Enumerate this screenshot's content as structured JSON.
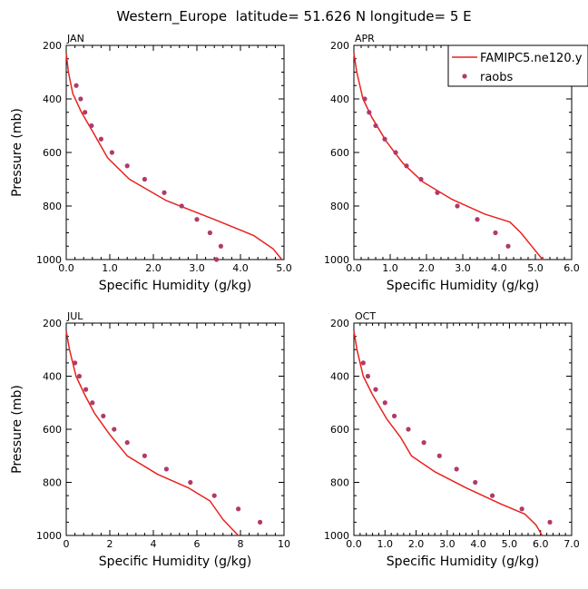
{
  "figure": {
    "title": "Western_Europe  latitude= 51.626 N longitude= 5 E"
  },
  "legend": {
    "entries": [
      {
        "label": "FAMIPC5.ne120.y",
        "style": "line",
        "color": "#e8221e"
      },
      {
        "label": "raobs",
        "style": "marker",
        "color": "#b03a6b"
      }
    ]
  },
  "chart_data": [
    {
      "type": "line",
      "panel_label": "JAN",
      "xlabel": "Specific Humidity (g/kg)",
      "ylabel": "Pressure (mb)",
      "xlim": [
        0,
        5
      ],
      "ylim": [
        1000,
        200
      ],
      "xticks": [
        "0.0",
        "1.0",
        "2.0",
        "3.0",
        "4.0",
        "5.0"
      ],
      "xtick_values": [
        0,
        1,
        2,
        3,
        4,
        5
      ],
      "yticks": [
        "200",
        "400",
        "600",
        "800",
        "1000"
      ],
      "ytick_values": [
        200,
        400,
        600,
        800,
        1000
      ],
      "series": [
        {
          "name": "FAMIPC5.ne120.y",
          "style": "line",
          "color": "#e8221e",
          "points": [
            [
              0.0,
              230
            ],
            [
              0.05,
              300
            ],
            [
              0.15,
              380
            ],
            [
              0.35,
              450
            ],
            [
              0.6,
              520
            ],
            [
              0.95,
              620
            ],
            [
              1.45,
              700
            ],
            [
              2.3,
              780
            ],
            [
              3.4,
              850
            ],
            [
              4.3,
              910
            ],
            [
              4.75,
              960
            ],
            [
              4.95,
              1000
            ]
          ]
        },
        {
          "name": "raobs",
          "style": "marker",
          "color": "#b03a6b",
          "points": [
            [
              0.23,
              350
            ],
            [
              0.33,
              400
            ],
            [
              0.43,
              450
            ],
            [
              0.58,
              500
            ],
            [
              0.8,
              550
            ],
            [
              1.05,
              600
            ],
            [
              1.4,
              650
            ],
            [
              1.8,
              700
            ],
            [
              2.25,
              750
            ],
            [
              2.65,
              800
            ],
            [
              3.0,
              850
            ],
            [
              3.3,
              900
            ],
            [
              3.55,
              950
            ],
            [
              3.45,
              1000
            ]
          ]
        }
      ]
    },
    {
      "type": "line",
      "panel_label": "APR",
      "xlabel": "Specific Humidity (g/kg)",
      "ylabel": "",
      "xlim": [
        0,
        6
      ],
      "ylim": [
        1000,
        200
      ],
      "xticks": [
        "0.0",
        "1.0",
        "2.0",
        "3.0",
        "4.0",
        "5.0",
        "6.0"
      ],
      "xtick_values": [
        0,
        1,
        2,
        3,
        4,
        5,
        6
      ],
      "yticks": [
        "200",
        "400",
        "600",
        "800",
        "1000"
      ],
      "ytick_values": [
        200,
        400,
        600,
        800,
        1000
      ],
      "series": [
        {
          "name": "FAMIPC5.ne120.y",
          "style": "line",
          "color": "#e8221e",
          "points": [
            [
              0.0,
              230
            ],
            [
              0.08,
              300
            ],
            [
              0.25,
              400
            ],
            [
              0.5,
              470
            ],
            [
              0.9,
              560
            ],
            [
              1.35,
              640
            ],
            [
              1.9,
              710
            ],
            [
              2.7,
              775
            ],
            [
              3.6,
              830
            ],
            [
              4.3,
              860
            ],
            [
              4.6,
              900
            ],
            [
              4.9,
              950
            ],
            [
              5.2,
              1000
            ]
          ]
        },
        {
          "name": "raobs",
          "style": "marker",
          "color": "#b03a6b",
          "points": [
            [
              0.3,
              400
            ],
            [
              0.42,
              450
            ],
            [
              0.6,
              500
            ],
            [
              0.85,
              550
            ],
            [
              1.15,
              600
            ],
            [
              1.45,
              650
            ],
            [
              1.85,
              700
            ],
            [
              2.3,
              750
            ],
            [
              2.85,
              800
            ],
            [
              3.4,
              850
            ],
            [
              3.9,
              900
            ],
            [
              4.25,
              950
            ]
          ]
        }
      ]
    },
    {
      "type": "line",
      "panel_label": "JUL",
      "xlabel": "Specific Humidity (g/kg)",
      "ylabel": "Pressure (mb)",
      "xlim": [
        0,
        10
      ],
      "ylim": [
        1000,
        200
      ],
      "xticks": [
        "0",
        "2",
        "4",
        "6",
        "8",
        "10"
      ],
      "xtick_values": [
        0,
        2,
        4,
        6,
        8,
        10
      ],
      "yticks": [
        "200",
        "400",
        "600",
        "800",
        "1000"
      ],
      "ytick_values": [
        200,
        400,
        600,
        800,
        1000
      ],
      "series": [
        {
          "name": "FAMIPC5.ne120.y",
          "style": "line",
          "color": "#e8221e",
          "points": [
            [
              0.0,
              230
            ],
            [
              0.15,
              300
            ],
            [
              0.45,
              400
            ],
            [
              0.85,
              470
            ],
            [
              1.3,
              540
            ],
            [
              2.0,
              620
            ],
            [
              2.8,
              700
            ],
            [
              4.2,
              770
            ],
            [
              5.6,
              820
            ],
            [
              6.6,
              870
            ],
            [
              7.2,
              940
            ],
            [
              7.9,
              1000
            ]
          ]
        },
        {
          "name": "raobs",
          "style": "marker",
          "color": "#b03a6b",
          "points": [
            [
              0.4,
              350
            ],
            [
              0.6,
              400
            ],
            [
              0.9,
              450
            ],
            [
              1.2,
              500
            ],
            [
              1.7,
              550
            ],
            [
              2.2,
              600
            ],
            [
              2.8,
              650
            ],
            [
              3.6,
              700
            ],
            [
              4.6,
              750
            ],
            [
              5.7,
              800
            ],
            [
              6.8,
              850
            ],
            [
              7.9,
              900
            ],
            [
              8.9,
              950
            ]
          ]
        }
      ]
    },
    {
      "type": "line",
      "panel_label": "OCT",
      "xlabel": "Specific Humidity (g/kg)",
      "ylabel": "",
      "xlim": [
        0,
        7
      ],
      "ylim": [
        1000,
        200
      ],
      "xticks": [
        "0.0",
        "1.0",
        "2.0",
        "3.0",
        "4.0",
        "5.0",
        "6.0",
        "7.0"
      ],
      "xtick_values": [
        0,
        1,
        2,
        3,
        4,
        5,
        6,
        7
      ],
      "yticks": [
        "200",
        "400",
        "600",
        "800",
        "1000"
      ],
      "ytick_values": [
        200,
        400,
        600,
        800,
        1000
      ],
      "series": [
        {
          "name": "FAMIPC5.ne120.y",
          "style": "line",
          "color": "#e8221e",
          "points": [
            [
              0.0,
              230
            ],
            [
              0.1,
              300
            ],
            [
              0.3,
              400
            ],
            [
              0.6,
              470
            ],
            [
              1.05,
              560
            ],
            [
              1.5,
              630
            ],
            [
              1.85,
              700
            ],
            [
              2.6,
              760
            ],
            [
              3.6,
              820
            ],
            [
              4.7,
              880
            ],
            [
              5.5,
              920
            ],
            [
              5.85,
              960
            ],
            [
              6.05,
              1000
            ]
          ]
        },
        {
          "name": "raobs",
          "style": "marker",
          "color": "#b03a6b",
          "points": [
            [
              0.3,
              350
            ],
            [
              0.45,
              400
            ],
            [
              0.7,
              450
            ],
            [
              1.0,
              500
            ],
            [
              1.3,
              550
            ],
            [
              1.75,
              600
            ],
            [
              2.25,
              650
            ],
            [
              2.75,
              700
            ],
            [
              3.3,
              750
            ],
            [
              3.9,
              800
            ],
            [
              4.45,
              850
            ],
            [
              5.4,
              900
            ],
            [
              6.3,
              950
            ]
          ]
        }
      ]
    }
  ]
}
